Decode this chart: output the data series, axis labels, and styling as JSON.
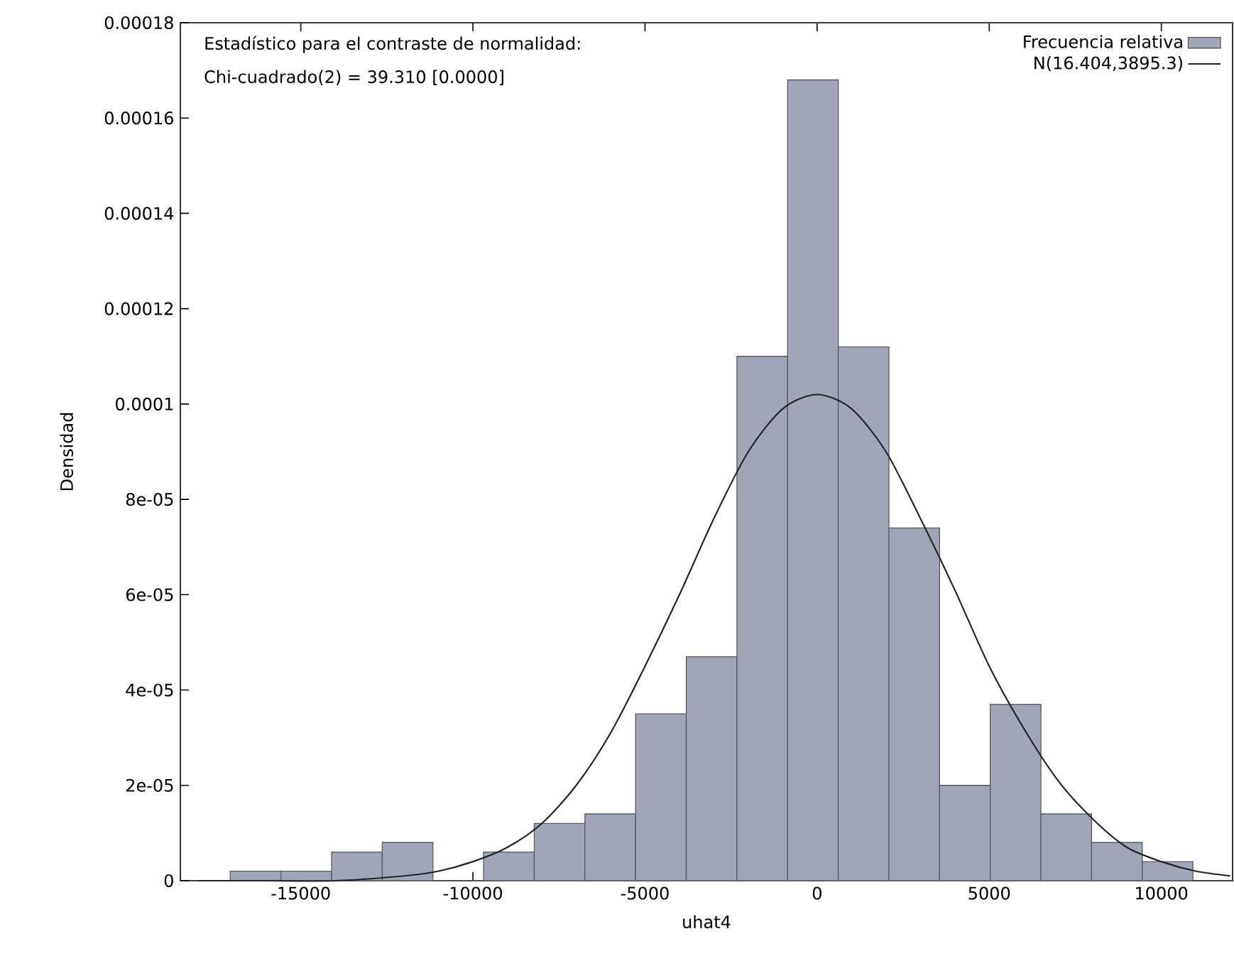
{
  "chart_data": {
    "type": "histogram",
    "xlabel": "uhat4",
    "ylabel": "Densidad",
    "annotations": [
      "Estadístico para el contraste de normalidad:",
      "Chi-cuadrado(2) = 39.310 [0.0000]"
    ],
    "series": [
      {
        "name": "Frecuencia relativa",
        "color": "#a0a6b6",
        "bins": [
          -17050,
          -15578,
          -14106,
          -12634,
          -11162,
          -9690,
          -8218,
          -6746,
          -5274,
          -3802,
          -2330,
          -858,
          614,
          2086,
          3558,
          5030,
          6502,
          7974,
          9446,
          10918
        ],
        "values": [
          2e-06,
          2e-06,
          6e-06,
          8e-06,
          0,
          6e-06,
          1.2e-05,
          1.4e-05,
          3.5e-05,
          4.7e-05,
          0.00011,
          0.000168,
          0.000112,
          7.4e-05,
          2e-05,
          3.7e-05,
          1.4e-05,
          8e-06,
          4e-06
        ]
      },
      {
        "name": "N(16.404,3895.3)",
        "type": "line",
        "color": "#222222",
        "x": [
          -18000,
          -16000,
          -14000,
          -12000,
          -11000,
          -10000,
          -9000,
          -8000,
          -7000,
          -6000,
          -5000,
          -4000,
          -3000,
          -2000,
          -1000,
          0,
          1000,
          2000,
          3000,
          4000,
          5000,
          6000,
          7000,
          8000,
          9000,
          10000,
          11000,
          12000
        ],
        "values": [
          0,
          0,
          0,
          1e-06,
          2e-06,
          4e-06,
          7e-06,
          1.2e-05,
          2e-05,
          3.1e-05,
          4.5e-05,
          6e-05,
          7.6e-05,
          9e-05,
          9.9e-05,
          0.000102,
          9.9e-05,
          9e-05,
          7.6e-05,
          6.1e-05,
          4.5e-05,
          3.2e-05,
          2.1e-05,
          1.3e-05,
          7e-06,
          4e-06,
          2e-06,
          1e-06
        ]
      }
    ],
    "xlim": [
      -18500,
      12070
    ],
    "ylim": [
      0,
      0.00018
    ],
    "xticks": [
      -15000,
      -10000,
      -5000,
      0,
      5000,
      10000
    ],
    "yticks": [
      0,
      {
        "value": 2e-05,
        "label": "2e-05"
      },
      {
        "value": 4e-05,
        "label": "4e-05"
      },
      {
        "value": 6e-05,
        "label": "6e-05"
      },
      {
        "value": 8e-05,
        "label": "8e-05"
      },
      0.0001,
      0.00012,
      0.00014,
      0.00016,
      0.00018
    ],
    "grid": false,
    "legend": "top right"
  }
}
